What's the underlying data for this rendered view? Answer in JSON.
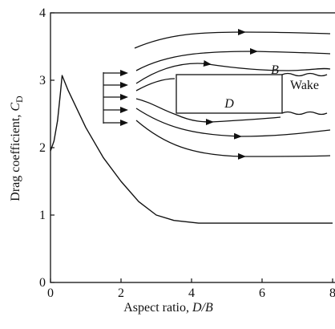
{
  "chart_data": {
    "type": "line",
    "y_label": "Drag coefficient, ",
    "y_label_symbol": "C",
    "y_label_subscript": "D",
    "x_label": "Aspect ratio, ",
    "x_label_symbol": "D/B",
    "x": [
      0,
      0.1,
      0.2,
      0.28,
      0.33,
      0.5,
      1,
      1.5,
      2,
      2.5,
      3,
      3.5,
      4.2,
      8
    ],
    "values": [
      1.95,
      2.1,
      2.4,
      2.8,
      3.07,
      2.85,
      2.3,
      1.85,
      1.5,
      1.2,
      1.0,
      0.92,
      0.88,
      0.88
    ],
    "color": "#111111",
    "xlim": [
      0,
      8
    ],
    "ylim": [
      0,
      4
    ],
    "xticks": [
      0,
      2,
      4,
      6,
      8
    ],
    "yticks": [
      0,
      1,
      2,
      3,
      4
    ],
    "annotations": {
      "body_height": "B",
      "body_length": "D",
      "wake": "Wake"
    }
  }
}
